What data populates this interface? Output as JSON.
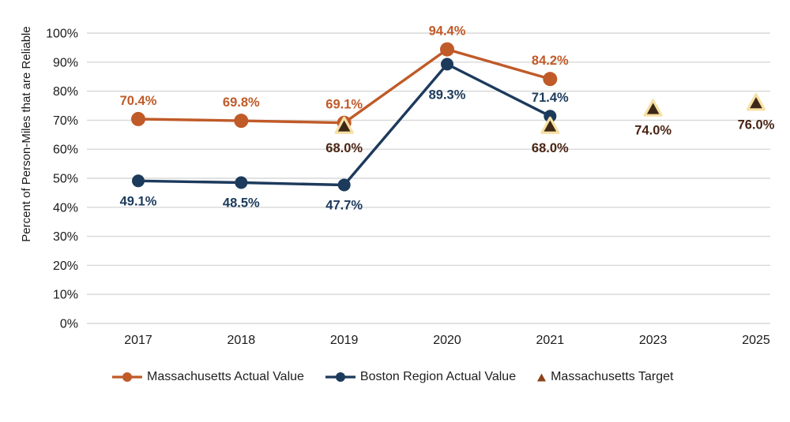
{
  "figure": {
    "legend": {
      "items": [
        {
          "label": "Massachusetts Actual Value",
          "swatch": "line-circle",
          "color": "#C05A28"
        },
        {
          "label": "Boston Region Actual Value",
          "swatch": "line-circle",
          "color": "#1C3A5C"
        },
        {
          "label": "Massachusetts Target",
          "swatch": "triangle",
          "color": "#8A431A"
        }
      ]
    }
  },
  "chart_data": {
    "type": "line",
    "title": "",
    "xlabel": "",
    "ylabel": "Percent of Person-Miles that are Reliable",
    "categories": [
      "2017",
      "2018",
      "2019",
      "2020",
      "2021",
      "2023",
      "2025"
    ],
    "y_ticks": [
      "0%",
      "10%",
      "20%",
      "30%",
      "40%",
      "50%",
      "60%",
      "70%",
      "80%",
      "90%",
      "100%"
    ],
    "ylim": [
      0,
      100
    ],
    "grid": true,
    "legend_position": "bottom",
    "series": [
      {
        "name": "Massachusetts Actual Value",
        "type": "line",
        "marker": "circle",
        "color": "#C05A28",
        "values": [
          70.4,
          69.8,
          69.1,
          94.4,
          84.2,
          null,
          null
        ],
        "point_labels": [
          "70.4%",
          "69.8%",
          "69.1%",
          "94.4%",
          "84.2%",
          null,
          null
        ],
        "label_placement": [
          "above",
          "above",
          "above",
          "above",
          "above",
          null,
          null
        ]
      },
      {
        "name": "Boston Region Actual Value",
        "type": "line",
        "marker": "circle",
        "color": "#1C3A5C",
        "values": [
          49.1,
          48.5,
          47.7,
          89.3,
          71.4,
          null,
          null
        ],
        "point_labels": [
          "49.1%",
          "48.5%",
          "47.7%",
          "89.3%",
          "71.4%",
          null,
          null
        ],
        "label_placement": [
          "below",
          "below",
          "below",
          "below-far",
          "above",
          null,
          null
        ]
      },
      {
        "name": "Massachusetts Target",
        "type": "scatter",
        "marker": "triangle",
        "color": "#3D2817",
        "marker_outline": "#F6E0A4",
        "label_color": "#4A2414",
        "values": [
          null,
          null,
          68.0,
          null,
          68.0,
          74.0,
          76.0
        ],
        "point_labels": [
          null,
          null,
          "68.0%",
          null,
          "68.0%",
          "74.0%",
          "76.0%"
        ],
        "label_placement": [
          null,
          null,
          "below",
          null,
          "below",
          "below",
          "below"
        ]
      }
    ]
  }
}
